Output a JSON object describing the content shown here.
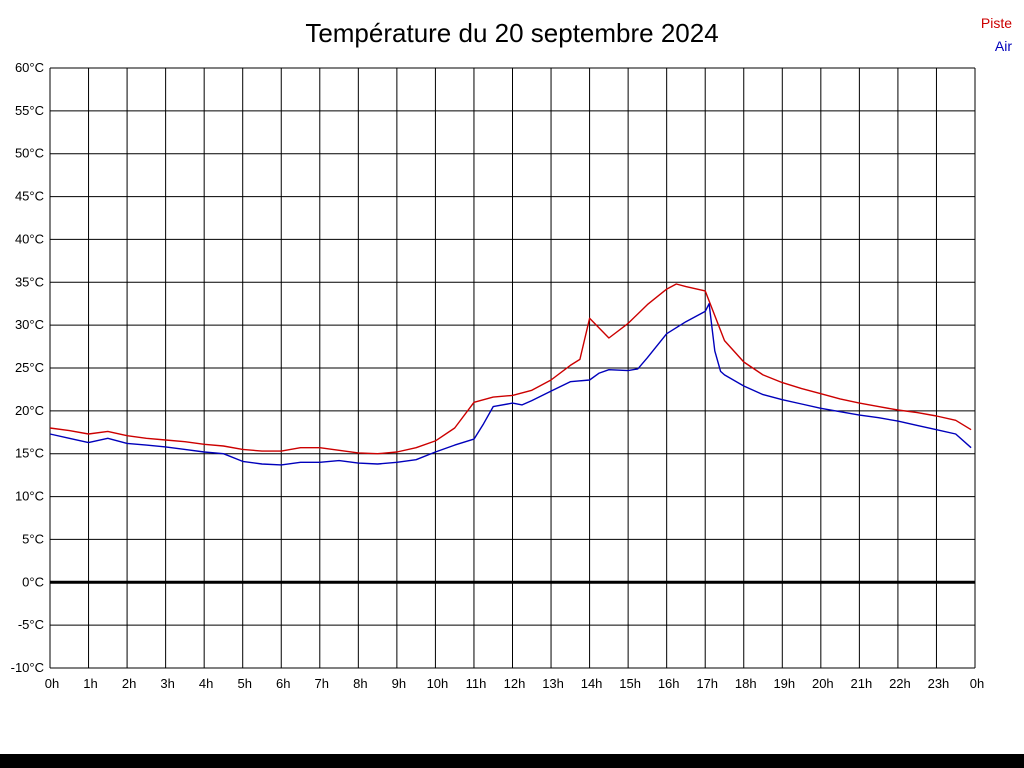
{
  "title": "Température du 20 septembre 2024",
  "legend": {
    "piste_label": "Piste",
    "air_label": "Air"
  },
  "colors": {
    "piste": "#cc0000",
    "air": "#0000bb",
    "grid": "#000000",
    "zero_line": "#000000"
  },
  "chart_data": {
    "type": "line",
    "title": "Température du 20 septembre 2024",
    "xlabel": "",
    "ylabel": "",
    "xlim": [
      0,
      24
    ],
    "ylim": [
      -10,
      60
    ],
    "y_tick_step": 5,
    "y_tick_suffix": "°C",
    "grid": true,
    "zero_line": true,
    "legend_position": "top-right",
    "x_ticks": [
      "0h",
      "1h",
      "2h",
      "3h",
      "4h",
      "5h",
      "6h",
      "7h",
      "8h",
      "9h",
      "10h",
      "11h",
      "12h",
      "13h",
      "14h",
      "15h",
      "16h",
      "17h",
      "18h",
      "19h",
      "20h",
      "21h",
      "22h",
      "23h",
      "0h"
    ],
    "series": [
      {
        "name": "Piste",
        "color": "#cc0000",
        "points": [
          [
            0,
            18.0
          ],
          [
            0.5,
            17.7
          ],
          [
            1,
            17.3
          ],
          [
            1.5,
            17.6
          ],
          [
            2,
            17.1
          ],
          [
            2.5,
            16.8
          ],
          [
            3,
            16.6
          ],
          [
            3.5,
            16.4
          ],
          [
            4,
            16.1
          ],
          [
            4.5,
            15.9
          ],
          [
            5,
            15.5
          ],
          [
            5.5,
            15.3
          ],
          [
            6,
            15.3
          ],
          [
            6.5,
            15.7
          ],
          [
            7,
            15.7
          ],
          [
            7.5,
            15.4
          ],
          [
            8,
            15.1
          ],
          [
            8.5,
            15.0
          ],
          [
            9,
            15.2
          ],
          [
            9.5,
            15.7
          ],
          [
            10,
            16.5
          ],
          [
            10.5,
            18.0
          ],
          [
            11,
            21.0
          ],
          [
            11.5,
            21.6
          ],
          [
            12,
            21.8
          ],
          [
            12.5,
            22.4
          ],
          [
            13,
            23.6
          ],
          [
            13.5,
            25.3
          ],
          [
            13.75,
            26.0
          ],
          [
            14,
            30.8
          ],
          [
            14.5,
            28.5
          ],
          [
            15,
            30.2
          ],
          [
            15.5,
            32.4
          ],
          [
            16,
            34.2
          ],
          [
            16.25,
            34.8
          ],
          [
            16.5,
            34.5
          ],
          [
            17,
            34.0
          ],
          [
            17.5,
            28.2
          ],
          [
            18,
            25.7
          ],
          [
            18.5,
            24.2
          ],
          [
            19,
            23.3
          ],
          [
            19.5,
            22.6
          ],
          [
            20,
            22.0
          ],
          [
            20.5,
            21.4
          ],
          [
            21,
            20.9
          ],
          [
            21.5,
            20.5
          ],
          [
            22,
            20.1
          ],
          [
            22.5,
            19.8
          ],
          [
            23,
            19.4
          ],
          [
            23.5,
            18.9
          ],
          [
            23.9,
            17.8
          ]
        ]
      },
      {
        "name": "Air",
        "color": "#0000bb",
        "points": [
          [
            0,
            17.3
          ],
          [
            0.5,
            16.8
          ],
          [
            1,
            16.3
          ],
          [
            1.5,
            16.8
          ],
          [
            2,
            16.2
          ],
          [
            2.5,
            16.0
          ],
          [
            3,
            15.8
          ],
          [
            3.5,
            15.5
          ],
          [
            4,
            15.2
          ],
          [
            4.5,
            15.0
          ],
          [
            5,
            14.1
          ],
          [
            5.5,
            13.8
          ],
          [
            6,
            13.7
          ],
          [
            6.5,
            14.0
          ],
          [
            7,
            14.0
          ],
          [
            7.5,
            14.2
          ],
          [
            8,
            13.9
          ],
          [
            8.5,
            13.8
          ],
          [
            9,
            14.0
          ],
          [
            9.5,
            14.3
          ],
          [
            10,
            15.2
          ],
          [
            10.5,
            16.0
          ],
          [
            11,
            16.7
          ],
          [
            11.25,
            18.5
          ],
          [
            11.5,
            20.5
          ],
          [
            12,
            20.9
          ],
          [
            12.25,
            20.7
          ],
          [
            12.5,
            21.2
          ],
          [
            13,
            22.3
          ],
          [
            13.5,
            23.4
          ],
          [
            14,
            23.6
          ],
          [
            14.25,
            24.4
          ],
          [
            14.5,
            24.8
          ],
          [
            15,
            24.7
          ],
          [
            15.25,
            24.9
          ],
          [
            15.5,
            26.2
          ],
          [
            16,
            29.0
          ],
          [
            16.5,
            30.4
          ],
          [
            17,
            31.6
          ],
          [
            17.1,
            32.5
          ],
          [
            17.25,
            27.0
          ],
          [
            17.4,
            24.6
          ],
          [
            17.5,
            24.2
          ],
          [
            18,
            22.9
          ],
          [
            18.5,
            21.9
          ],
          [
            19,
            21.3
          ],
          [
            19.5,
            20.8
          ],
          [
            20,
            20.3
          ],
          [
            20.5,
            19.9
          ],
          [
            21,
            19.5
          ],
          [
            21.5,
            19.2
          ],
          [
            22,
            18.8
          ],
          [
            22.5,
            18.3
          ],
          [
            23,
            17.8
          ],
          [
            23.5,
            17.3
          ],
          [
            23.9,
            15.7
          ]
        ]
      }
    ]
  }
}
